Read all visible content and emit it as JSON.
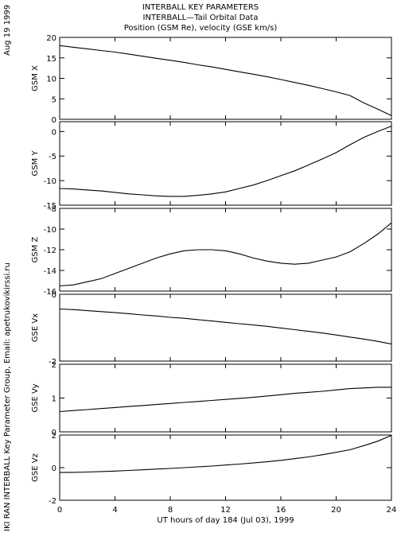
{
  "header": {
    "date": "Aug 19 1999",
    "credit": "IKI RAN INTERBALL Key Parameter Group, Email: apetrukovikirssi.ru",
    "title_lines": [
      "INTERBALL KEY PARAMETERS",
      "INTERBALL—Tail Orbital Data",
      "Position (GSM Re), velocity (GSE km/s)"
    ]
  },
  "chart_data": {
    "type": "line",
    "xlabel": "UT hours of day 184 (Jul 03), 1999",
    "xlim": [
      0,
      24
    ],
    "xticks": [
      0,
      4,
      8,
      12,
      16,
      20,
      24
    ],
    "x": [
      0,
      1,
      2,
      3,
      4,
      5,
      6,
      7,
      8,
      9,
      10,
      11,
      12,
      13,
      14,
      15,
      16,
      17,
      18,
      19,
      20,
      21,
      22,
      23,
      24
    ],
    "panels": [
      {
        "ylabel": "GSM X",
        "ylim": [
          0,
          20
        ],
        "yticks": [
          0,
          5,
          10,
          15,
          20
        ],
        "values": [
          18.0,
          17.6,
          17.2,
          16.8,
          16.4,
          15.9,
          15.4,
          14.9,
          14.4,
          13.9,
          13.3,
          12.8,
          12.2,
          11.6,
          11.0,
          10.4,
          9.7,
          9.0,
          8.3,
          7.5,
          6.7,
          5.8,
          4.0,
          2.5,
          0.9
        ]
      },
      {
        "ylabel": "GSM Y",
        "ylim": [
          -15,
          2
        ],
        "yticks": [
          -15,
          -10,
          -5,
          0
        ],
        "values": [
          -11.6,
          -11.7,
          -11.9,
          -12.1,
          -12.4,
          -12.7,
          -12.9,
          -13.1,
          -13.2,
          -13.2,
          -13.0,
          -12.7,
          -12.3,
          -11.6,
          -10.9,
          -10.0,
          -9.0,
          -8.0,
          -6.8,
          -5.6,
          -4.3,
          -2.7,
          -1.2,
          0.0,
          1.1
        ]
      },
      {
        "ylabel": "GSM Z",
        "ylim": [
          -16,
          -8
        ],
        "yticks": [
          -16,
          -14,
          -12,
          -10,
          -8
        ],
        "values": [
          -15.5,
          -15.4,
          -15.1,
          -14.8,
          -14.3,
          -13.8,
          -13.3,
          -12.8,
          -12.4,
          -12.1,
          -12.0,
          -12.0,
          -12.1,
          -12.4,
          -12.8,
          -13.1,
          -13.3,
          -13.4,
          -13.3,
          -13.0,
          -12.7,
          -12.2,
          -11.4,
          -10.5,
          -9.4
        ]
      },
      {
        "ylabel": "GSE Vx",
        "ylim": [
          -2,
          0
        ],
        "yticks": [
          -2,
          0
        ],
        "values": [
          -0.44,
          -0.46,
          -0.49,
          -0.52,
          -0.55,
          -0.58,
          -0.62,
          -0.65,
          -0.69,
          -0.72,
          -0.76,
          -0.8,
          -0.84,
          -0.88,
          -0.92,
          -0.96,
          -1.01,
          -1.06,
          -1.11,
          -1.16,
          -1.22,
          -1.28,
          -1.34,
          -1.41,
          -1.49
        ]
      },
      {
        "ylabel": "GSE Vy",
        "ylim": [
          0,
          2
        ],
        "yticks": [
          0,
          1,
          2
        ],
        "values": [
          0.6,
          0.63,
          0.66,
          0.69,
          0.72,
          0.75,
          0.78,
          0.81,
          0.84,
          0.87,
          0.9,
          0.93,
          0.96,
          0.99,
          1.02,
          1.06,
          1.1,
          1.14,
          1.17,
          1.2,
          1.24,
          1.28,
          1.3,
          1.32,
          1.32
        ]
      },
      {
        "ylabel": "GSE Vz",
        "ylim": [
          -2,
          2
        ],
        "yticks": [
          -2,
          0,
          2
        ],
        "values": [
          -0.3,
          -0.29,
          -0.27,
          -0.24,
          -0.21,
          -0.17,
          -0.13,
          -0.09,
          -0.05,
          0.0,
          0.05,
          0.1,
          0.16,
          0.22,
          0.29,
          0.36,
          0.45,
          0.55,
          0.66,
          0.79,
          0.94,
          1.1,
          1.35,
          1.62,
          1.98
        ]
      }
    ]
  }
}
